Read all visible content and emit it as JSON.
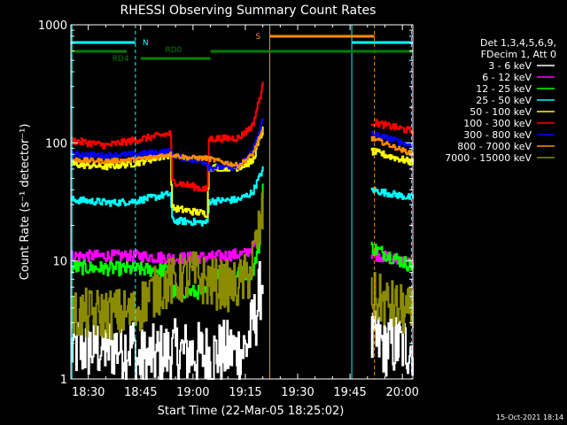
{
  "chart_data": {
    "type": "line",
    "title": "RHESSI Observing Summary Count Rates",
    "xlabel": "Start Time (22-Mar-05 18:25:02)",
    "ylabel": "Count Rate (s⁻¹ detector⁻¹)",
    "yscale": "log",
    "ylim": [
      1,
      1000
    ],
    "xlim_minutes": [
      0,
      98
    ],
    "x_ticks": [
      {
        "m": 5,
        "label": "18:30"
      },
      {
        "m": 20,
        "label": "18:45"
      },
      {
        "m": 35,
        "label": "19:00"
      },
      {
        "m": 50,
        "label": "19:15"
      },
      {
        "m": 65,
        "label": "19:30"
      },
      {
        "m": 80,
        "label": "19:45"
      },
      {
        "m": 95,
        "label": "20:00"
      }
    ],
    "y_ticks": [
      {
        "v": 1,
        "label": "1"
      },
      {
        "v": 10,
        "label": "10"
      },
      {
        "v": 100,
        "label": "100"
      },
      {
        "v": 1000,
        "label": "1000"
      }
    ],
    "legend_header": [
      "Det 1,3,4,5,6,9,",
      "FDecim 1, Att 0"
    ],
    "legend_position": "right",
    "series": [
      {
        "name": "3 - 6 keV",
        "color": "#ffffff",
        "noise": 0.28,
        "points": [
          [
            0,
            1.8
          ],
          [
            18,
            1.9
          ],
          [
            18.5,
            1.4
          ],
          [
            29,
            1.7
          ],
          [
            40,
            1.6
          ],
          [
            50,
            1.8
          ],
          [
            53,
            3.5
          ],
          [
            55,
            8
          ]
        ],
        "points2": [
          [
            86,
            2.0
          ],
          [
            98,
            1.9
          ]
        ]
      },
      {
        "name": "6 - 12 keV",
        "color": "#ff00ff",
        "noise": 0.05,
        "points": [
          [
            0,
            11
          ],
          [
            20,
            11
          ],
          [
            30,
            10.5
          ],
          [
            40,
            10.8
          ],
          [
            50,
            11.5
          ],
          [
            53,
            14
          ],
          [
            55,
            30
          ]
        ],
        "points2": [
          [
            86,
            11.5
          ],
          [
            98,
            9.5
          ]
        ]
      },
      {
        "name": "12 - 25 keV",
        "color": "#00ff00",
        "noise": 0.06,
        "points": [
          [
            0,
            8.8
          ],
          [
            18,
            8.5
          ],
          [
            28.5,
            8.3
          ],
          [
            29,
            5.5
          ],
          [
            39,
            5.4
          ],
          [
            39.5,
            7.5
          ],
          [
            52,
            8
          ],
          [
            54,
            14
          ],
          [
            55,
            45
          ]
        ],
        "points2": [
          [
            86,
            13
          ],
          [
            98,
            9
          ]
        ]
      },
      {
        "name": "25 - 50 keV",
        "color": "#00ffff",
        "noise": 0.03,
        "points": [
          [
            0,
            33
          ],
          [
            12,
            31
          ],
          [
            18,
            32
          ],
          [
            28.5,
            37
          ],
          [
            29,
            22
          ],
          [
            39,
            21
          ],
          [
            39.5,
            32
          ],
          [
            48,
            33
          ],
          [
            52,
            38
          ],
          [
            55,
            60
          ]
        ],
        "points2": [
          [
            86,
            40
          ],
          [
            98,
            34
          ]
        ]
      },
      {
        "name": "50 - 100 keV",
        "color": "#ffff00",
        "noise": 0.03,
        "points": [
          [
            0,
            66
          ],
          [
            10,
            63
          ],
          [
            18,
            67
          ],
          [
            28.5,
            80
          ],
          [
            29,
            28
          ],
          [
            39,
            25
          ],
          [
            39.5,
            62
          ],
          [
            48,
            62
          ],
          [
            52,
            70
          ],
          [
            55,
            130
          ]
        ],
        "points2": [
          [
            86,
            85
          ],
          [
            98,
            68
          ]
        ]
      },
      {
        "name": "100 - 300 keV",
        "color": "#ff0000",
        "noise": 0.03,
        "points": [
          [
            0,
            105
          ],
          [
            10,
            95
          ],
          [
            18,
            105
          ],
          [
            28.5,
            120
          ],
          [
            29,
            47
          ],
          [
            39,
            40
          ],
          [
            39.5,
            108
          ],
          [
            48,
            110
          ],
          [
            52,
            140
          ],
          [
            55,
            310
          ]
        ],
        "points2": [
          [
            86,
            150
          ],
          [
            98,
            125
          ]
        ]
      },
      {
        "name": "300 - 800 keV",
        "color": "#0000ff",
        "noise": 0.025,
        "points": [
          [
            0,
            80
          ],
          [
            10,
            78
          ],
          [
            18,
            80
          ],
          [
            28.5,
            85
          ],
          [
            29,
            78
          ],
          [
            39,
            68
          ],
          [
            39.5,
            62
          ],
          [
            48,
            62
          ],
          [
            52,
            85
          ],
          [
            55,
            160
          ]
        ],
        "points2": [
          [
            86,
            120
          ],
          [
            98,
            95
          ]
        ]
      },
      {
        "name": "800 - 7000 keV",
        "color": "#ff8c00",
        "noise": 0.02,
        "points": [
          [
            0,
            72
          ],
          [
            10,
            70
          ],
          [
            18,
            72
          ],
          [
            28.5,
            80
          ],
          [
            33,
            75
          ],
          [
            39,
            74
          ],
          [
            48,
            64
          ],
          [
            52,
            80
          ],
          [
            55,
            130
          ]
        ],
        "points2": [
          [
            86,
            110
          ],
          [
            98,
            80
          ]
        ]
      },
      {
        "name": "7000 - 15000 keV",
        "color": "#8b8b00",
        "noise": 0.22,
        "points": [
          [
            0,
            3.5
          ],
          [
            18,
            3.6
          ],
          [
            22,
            5
          ],
          [
            28,
            6.5
          ],
          [
            35,
            7.5
          ],
          [
            40,
            6.5
          ],
          [
            47,
            6
          ],
          [
            51,
            7.5
          ],
          [
            53,
            14
          ],
          [
            55,
            25
          ]
        ],
        "points2": [
          [
            86,
            5
          ],
          [
            98,
            3.5
          ]
        ]
      }
    ],
    "annotations": [
      {
        "label": "N",
        "color": "#00ffff",
        "m_start": 0,
        "m_end": 18.5
      },
      {
        "label": "",
        "color": "#00ffff",
        "m_start": 80.5,
        "m_end": 98
      },
      {
        "label": "S",
        "color": "#ff8c00",
        "m_start": 57,
        "m_end": 87
      },
      {
        "label": "RD0",
        "color": "#008000",
        "m_start": 0,
        "m_end": 98
      },
      {
        "label": "RD4",
        "color": "#008000",
        "m_start": 20,
        "m_end": 40
      }
    ]
  },
  "footer_date": "15-Oct-2021 18:14"
}
